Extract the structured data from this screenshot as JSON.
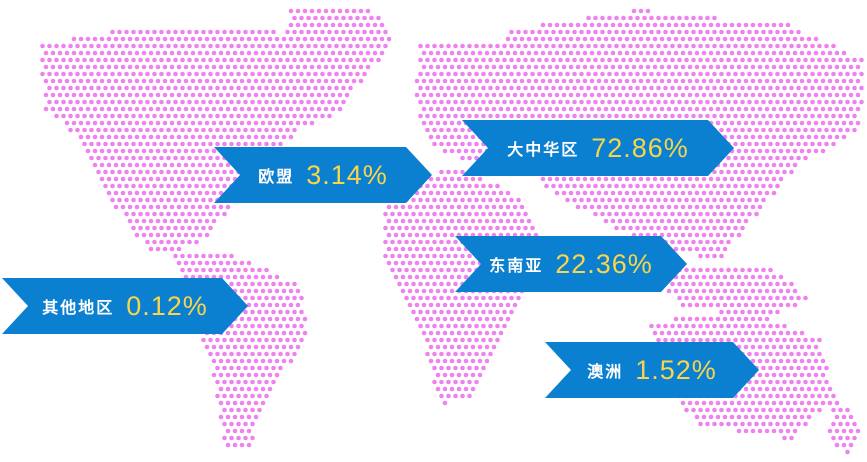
{
  "map": {
    "dot_color": "#ee82ee",
    "label_bg": "#0b7fd0",
    "value_color": "#f8d54a"
  },
  "regions": [
    {
      "id": "greater-china",
      "name": "大中华区",
      "value": "72.86%"
    },
    {
      "id": "europe",
      "name": "欧盟",
      "value": "3.14%"
    },
    {
      "id": "southeast-asia",
      "name": "东南亚",
      "value": "22.36%"
    },
    {
      "id": "other",
      "name": "其他地区",
      "value": "0.12%"
    },
    {
      "id": "australia",
      "name": "澳洲",
      "value": "1.52%"
    }
  ]
}
